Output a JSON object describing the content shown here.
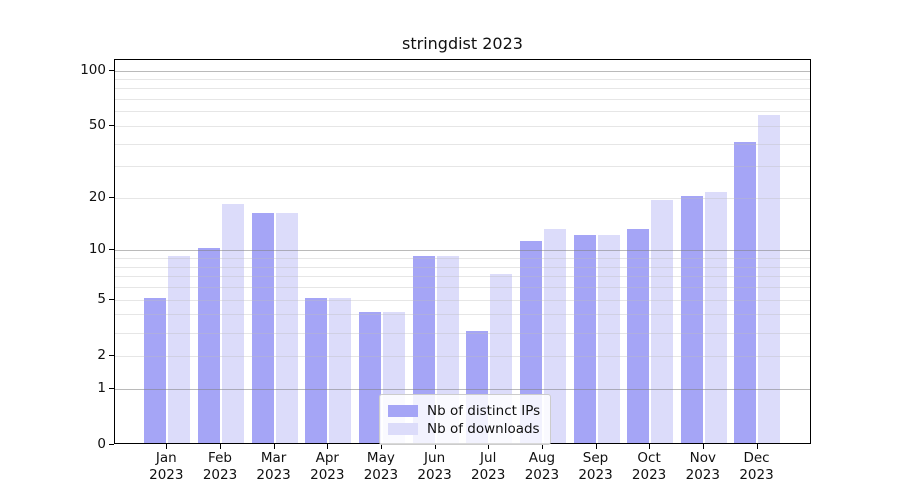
{
  "header": {
    "title": "stringdist 2023"
  },
  "chart_data": {
    "type": "bar",
    "title": "stringdist 2023",
    "categories": [
      "Jan 2023",
      "Feb 2023",
      "Mar 2023",
      "Apr 2023",
      "May 2023",
      "Jun 2023",
      "Jul 2023",
      "Aug 2023",
      "Sep 2023",
      "Oct 2023",
      "Nov 2023",
      "Dec 2023"
    ],
    "series": [
      {
        "name": "Nb of distinct IPs",
        "color": "#a5a5f6",
        "values": [
          5,
          10,
          16,
          5,
          4,
          9,
          3,
          11,
          12,
          13,
          20,
          40
        ]
      },
      {
        "name": "Nb of downloads",
        "color": "#dcdcfa",
        "values": [
          9,
          18,
          16,
          5,
          4,
          9,
          7,
          13,
          12,
          19,
          21,
          56
        ]
      }
    ],
    "xlabel": "",
    "ylabel": "",
    "y_scale": "log10(1+x)",
    "ylim": [
      0,
      114
    ],
    "y_tick_labels": [
      "100",
      "50",
      "20",
      "10",
      "5",
      "2",
      "1",
      "0"
    ],
    "y_ticks": [
      100,
      50,
      20,
      10,
      5,
      2,
      1,
      0
    ],
    "gridlines": {
      "decade": [
        1,
        10,
        100
      ],
      "minor": [
        2,
        3,
        4,
        5,
        6,
        7,
        8,
        9,
        20,
        30,
        40,
        50,
        60,
        70,
        80,
        90
      ]
    },
    "grid": true,
    "legend": {
      "labels": [
        "Nb of distinct IPs",
        "Nb of downloads"
      ],
      "position": "inside-bottom-center"
    }
  }
}
